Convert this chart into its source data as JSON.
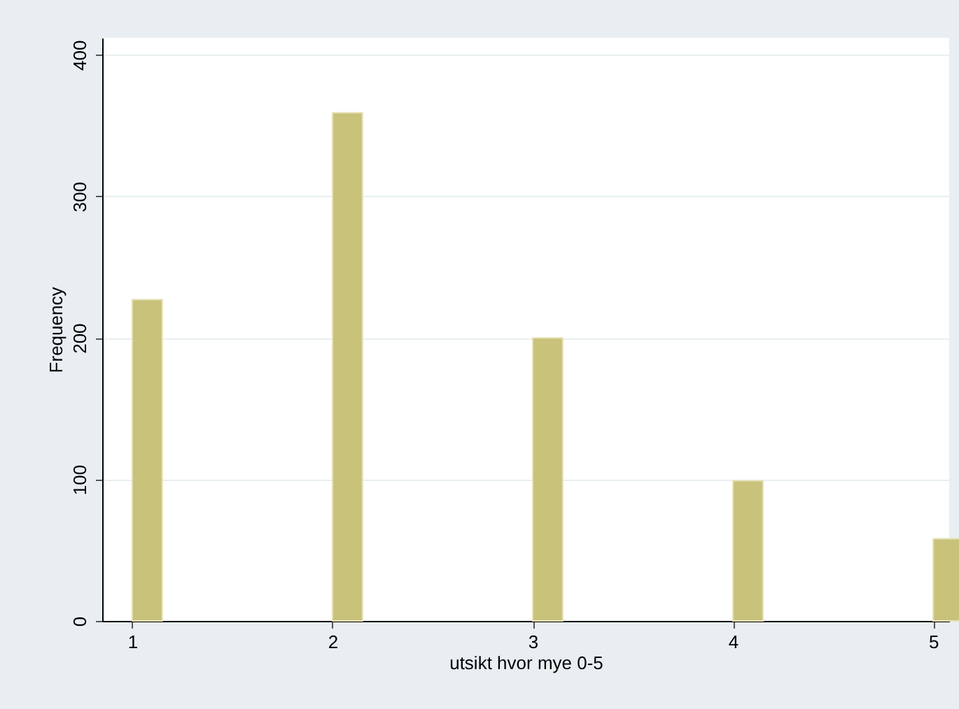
{
  "chart_data": {
    "type": "bar",
    "xlabel": "utsikt hvor mye 0-5",
    "ylabel": "Frequency",
    "x": [
      1,
      2,
      3,
      4,
      5
    ],
    "values": [
      227,
      359,
      200,
      99,
      58
    ],
    "color": "#c9c27b",
    "xlim": [
      0.85,
      5.08
    ],
    "xticks": [
      1,
      2,
      3,
      4,
      5
    ],
    "ylim": [
      0,
      412
    ],
    "yticks": [
      0,
      100,
      200,
      300,
      400
    ],
    "grid": "y"
  }
}
